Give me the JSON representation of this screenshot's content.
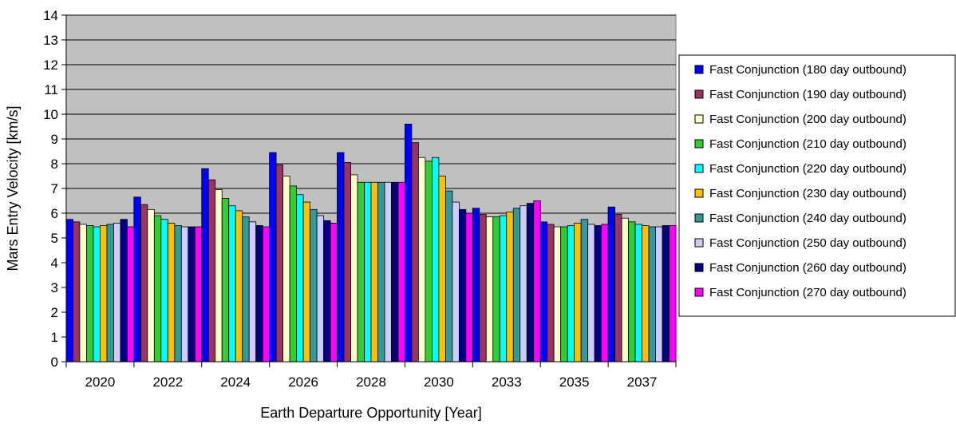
{
  "chart_data": {
    "type": "bar",
    "title": "",
    "xlabel": "Earth Departure Opportunity [Year]",
    "ylabel": "Mars Entry Velocity [km/s]",
    "ylim": [
      0,
      14
    ],
    "yticks": [
      "0",
      "1",
      "2",
      "3",
      "4",
      "5",
      "6",
      "7",
      "8",
      "9",
      "10",
      "11",
      "12",
      "13",
      "14"
    ],
    "grid": true,
    "plot_background": "#c0c0c0",
    "legend_position": "right",
    "categories": [
      "2020",
      "2022",
      "2024",
      "2026",
      "2028",
      "2030",
      "2033",
      "2035",
      "2037"
    ],
    "series": [
      {
        "name": "Fast Conjunction (180 day outbound)",
        "color": "#0000ff",
        "values": [
          5.75,
          6.65,
          7.8,
          8.45,
          8.45,
          9.6,
          6.2,
          5.65,
          6.25
        ]
      },
      {
        "name": "Fast Conjunction (190 day outbound)",
        "color": "#993366",
        "values": [
          5.65,
          6.35,
          7.35,
          7.95,
          8.05,
          8.85,
          5.95,
          5.55,
          5.95
        ]
      },
      {
        "name": "Fast Conjunction (200 day outbound)",
        "color": "#ffffcc",
        "values": [
          5.55,
          6.15,
          6.95,
          7.5,
          7.55,
          8.25,
          5.85,
          5.45,
          5.8
        ]
      },
      {
        "name": "Fast Conjunction (210 day outbound)",
        "color": "#33cc33",
        "values": [
          5.5,
          5.9,
          6.6,
          7.1,
          7.25,
          8.1,
          5.85,
          5.45,
          5.65
        ]
      },
      {
        "name": "Fast Conjunction (220 day outbound)",
        "color": "#00ffff",
        "values": [
          5.45,
          5.75,
          6.3,
          6.75,
          7.25,
          8.25,
          5.9,
          5.5,
          5.55
        ]
      },
      {
        "name": "Fast Conjunction (230 day outbound)",
        "color": "#ffc000",
        "values": [
          5.5,
          5.6,
          6.1,
          6.45,
          7.25,
          7.5,
          6.05,
          5.6,
          5.5
        ]
      },
      {
        "name": "Fast Conjunction (240 day outbound)",
        "color": "#339999",
        "values": [
          5.55,
          5.5,
          5.85,
          6.15,
          7.25,
          6.9,
          6.2,
          5.75,
          5.45
        ]
      },
      {
        "name": "Fast Conjunction (250 day outbound)",
        "color": "#ccccff",
        "values": [
          5.6,
          5.45,
          5.65,
          5.9,
          7.25,
          6.45,
          6.3,
          5.55,
          5.45
        ]
      },
      {
        "name": "Fast Conjunction (260 day outbound)",
        "color": "#000080",
        "values": [
          5.75,
          5.45,
          5.5,
          5.7,
          7.25,
          6.15,
          6.4,
          5.5,
          5.5
        ]
      },
      {
        "name": "Fast Conjunction (270 day outbound)",
        "color": "#ff00ff",
        "values": [
          5.45,
          5.45,
          5.45,
          5.6,
          7.25,
          6.0,
          6.5,
          5.55,
          5.5
        ]
      }
    ]
  }
}
